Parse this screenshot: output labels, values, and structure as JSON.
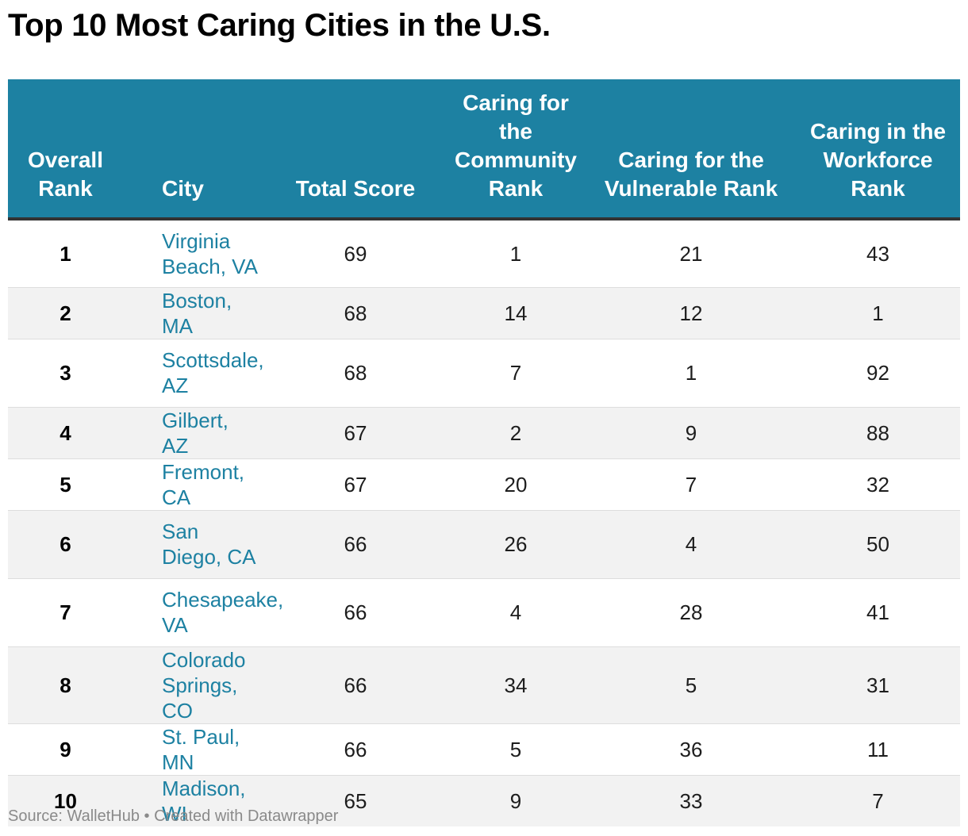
{
  "title": "Top 10 Most Caring Cities in the U.S.",
  "source": "Source: WalletHub • Created with Datawrapper",
  "colors": {
    "header_bg": "#1d81a2",
    "city_link": "#1d81a2",
    "row_stripe": "#f2f2f2",
    "source_text": "#8a8a8a"
  },
  "chart_data": {
    "type": "table",
    "title": "Top 10 Most Caring Cities in the U.S.",
    "columns": [
      "Overall Rank",
      "City",
      "Total Score",
      "Caring for the Community Rank",
      "Caring for the Vulnerable Rank",
      "Caring in the Workforce Rank"
    ],
    "rows": [
      {
        "rank": "1",
        "city": "Virginia Beach, VA",
        "score": "69",
        "community": "1",
        "vulnerable": "21",
        "workforce": "43"
      },
      {
        "rank": "2",
        "city": "Boston, MA",
        "score": "68",
        "community": "14",
        "vulnerable": "12",
        "workforce": "1"
      },
      {
        "rank": "3",
        "city": "Scottsdale, AZ",
        "score": "68",
        "community": "7",
        "vulnerable": "1",
        "workforce": "92"
      },
      {
        "rank": "4",
        "city": "Gilbert, AZ",
        "score": "67",
        "community": "2",
        "vulnerable": "9",
        "workforce": "88"
      },
      {
        "rank": "5",
        "city": "Fremont, CA",
        "score": "67",
        "community": "20",
        "vulnerable": "7",
        "workforce": "32"
      },
      {
        "rank": "6",
        "city": "San Diego, CA",
        "score": "66",
        "community": "26",
        "vulnerable": "4",
        "workforce": "50"
      },
      {
        "rank": "7",
        "city": "Chesapeake, VA",
        "score": "66",
        "community": "4",
        "vulnerable": "28",
        "workforce": "41"
      },
      {
        "rank": "8",
        "city": "Colorado Springs, CO",
        "score": "66",
        "community": "34",
        "vulnerable": "5",
        "workforce": "31"
      },
      {
        "rank": "9",
        "city": "St. Paul, MN",
        "score": "66",
        "community": "5",
        "vulnerable": "36",
        "workforce": "11"
      },
      {
        "rank": "10",
        "city": "Madison, WI",
        "score": "65",
        "community": "9",
        "vulnerable": "33",
        "workforce": "7"
      }
    ]
  }
}
